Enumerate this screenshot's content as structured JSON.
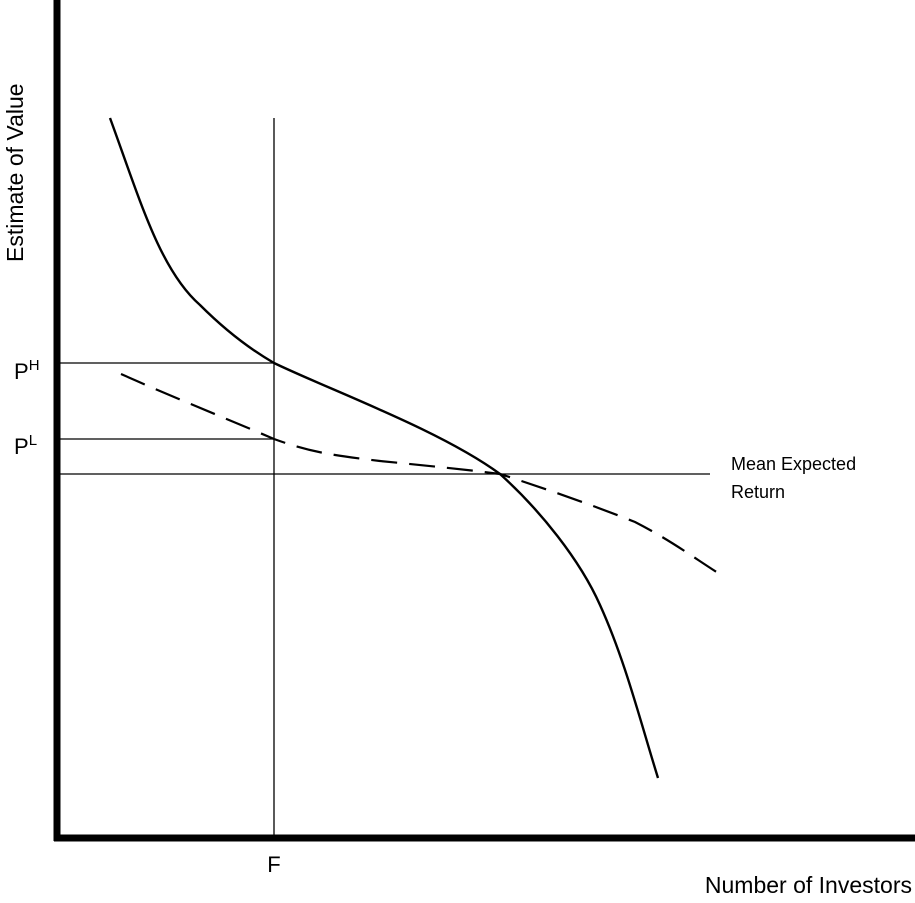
{
  "axes": {
    "y_title": "Estimate of Value",
    "x_title": "Number of Investors"
  },
  "labels": {
    "f_tick": "F",
    "p_high_base": "P",
    "p_high_sup": "H",
    "p_low_base": "P",
    "p_low_sup": "L",
    "mean_line_1": "Mean Expected",
    "mean_line_2": "Return"
  },
  "curves": {
    "solid": {
      "style": "solid",
      "color": "#000000"
    },
    "dashed": {
      "style": "dashed",
      "color": "#000000"
    }
  }
}
